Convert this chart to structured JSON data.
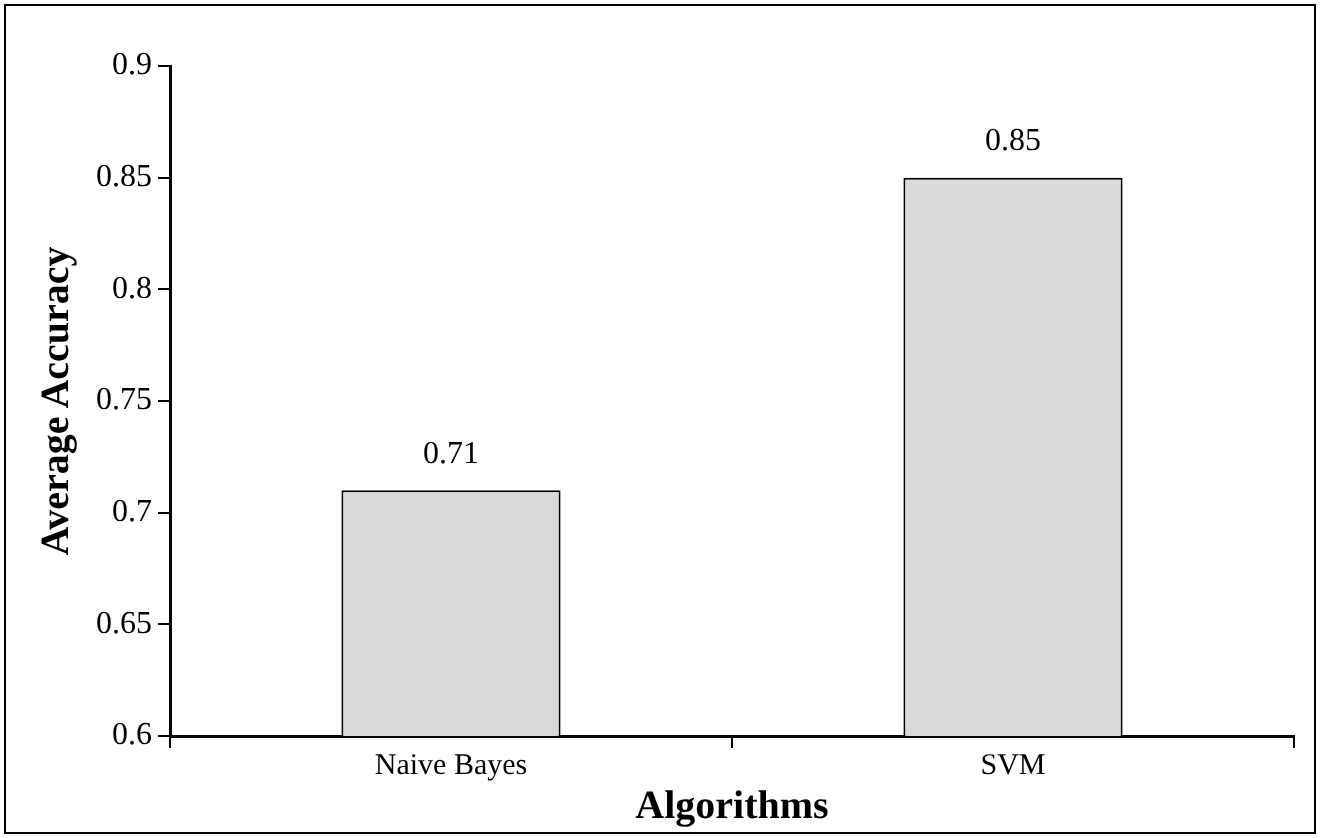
{
  "chart_data": {
    "type": "bar",
    "xlabel": "Algorithms",
    "ylabel": "Average Accuracy",
    "categories": [
      "Naive Bayes",
      "SVM"
    ],
    "values": [
      0.71,
      0.85
    ],
    "color": "#d9d9d9",
    "ylim": [
      0.6,
      0.9
    ],
    "yticks": [
      0.6,
      0.65,
      0.7,
      0.75,
      0.8,
      0.85,
      0.9
    ],
    "data_labels": true,
    "grid": false,
    "legend": false
  }
}
